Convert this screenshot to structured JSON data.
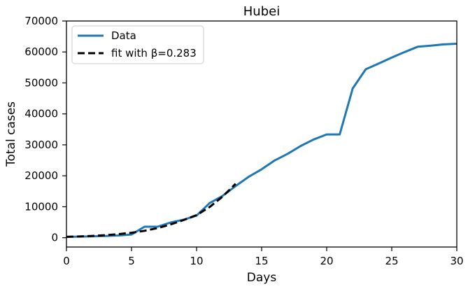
{
  "chart_data": {
    "type": "line",
    "title": "Hubei",
    "xlabel": "Days",
    "ylabel": "Total cases",
    "xlim": [
      0,
      30
    ],
    "ylim": [
      -3000,
      70000
    ],
    "xticks": [
      0,
      5,
      10,
      15,
      20,
      25,
      30
    ],
    "yticks": [
      0,
      10000,
      20000,
      30000,
      40000,
      50000,
      60000,
      70000
    ],
    "grid": false,
    "legend_position": "upper-left",
    "series": [
      {
        "name": "Data",
        "style": "solid",
        "color": "#1f77b4",
        "x": [
          0,
          1,
          2,
          3,
          4,
          5,
          6,
          7,
          8,
          9,
          10,
          11,
          12,
          13,
          14,
          15,
          16,
          17,
          18,
          19,
          20,
          21,
          22,
          23,
          24,
          25,
          26,
          27,
          28,
          29,
          30
        ],
        "y": [
          270,
          375,
          444,
          549,
          729,
          1052,
          3554,
          3554,
          4903,
          5806,
          7153,
          11177,
          13522,
          16678,
          19665,
          22112,
          24953,
          27100,
          29631,
          31728,
          33366,
          33366,
          48206,
          54406,
          56249,
          58182,
          59989,
          61682,
          62031,
          62442,
          62662
        ]
      },
      {
        "name": "fit with β=0.283",
        "style": "dashed",
        "color": "#000000",
        "x": [
          0,
          1,
          2,
          3,
          4,
          5,
          6,
          7,
          8,
          9,
          10,
          11,
          12,
          13
        ],
        "y": [
          300,
          420,
          590,
          820,
          1150,
          1610,
          2240,
          3100,
          4300,
          5700,
          7300,
          9900,
          13300,
          17400
        ]
      }
    ]
  }
}
